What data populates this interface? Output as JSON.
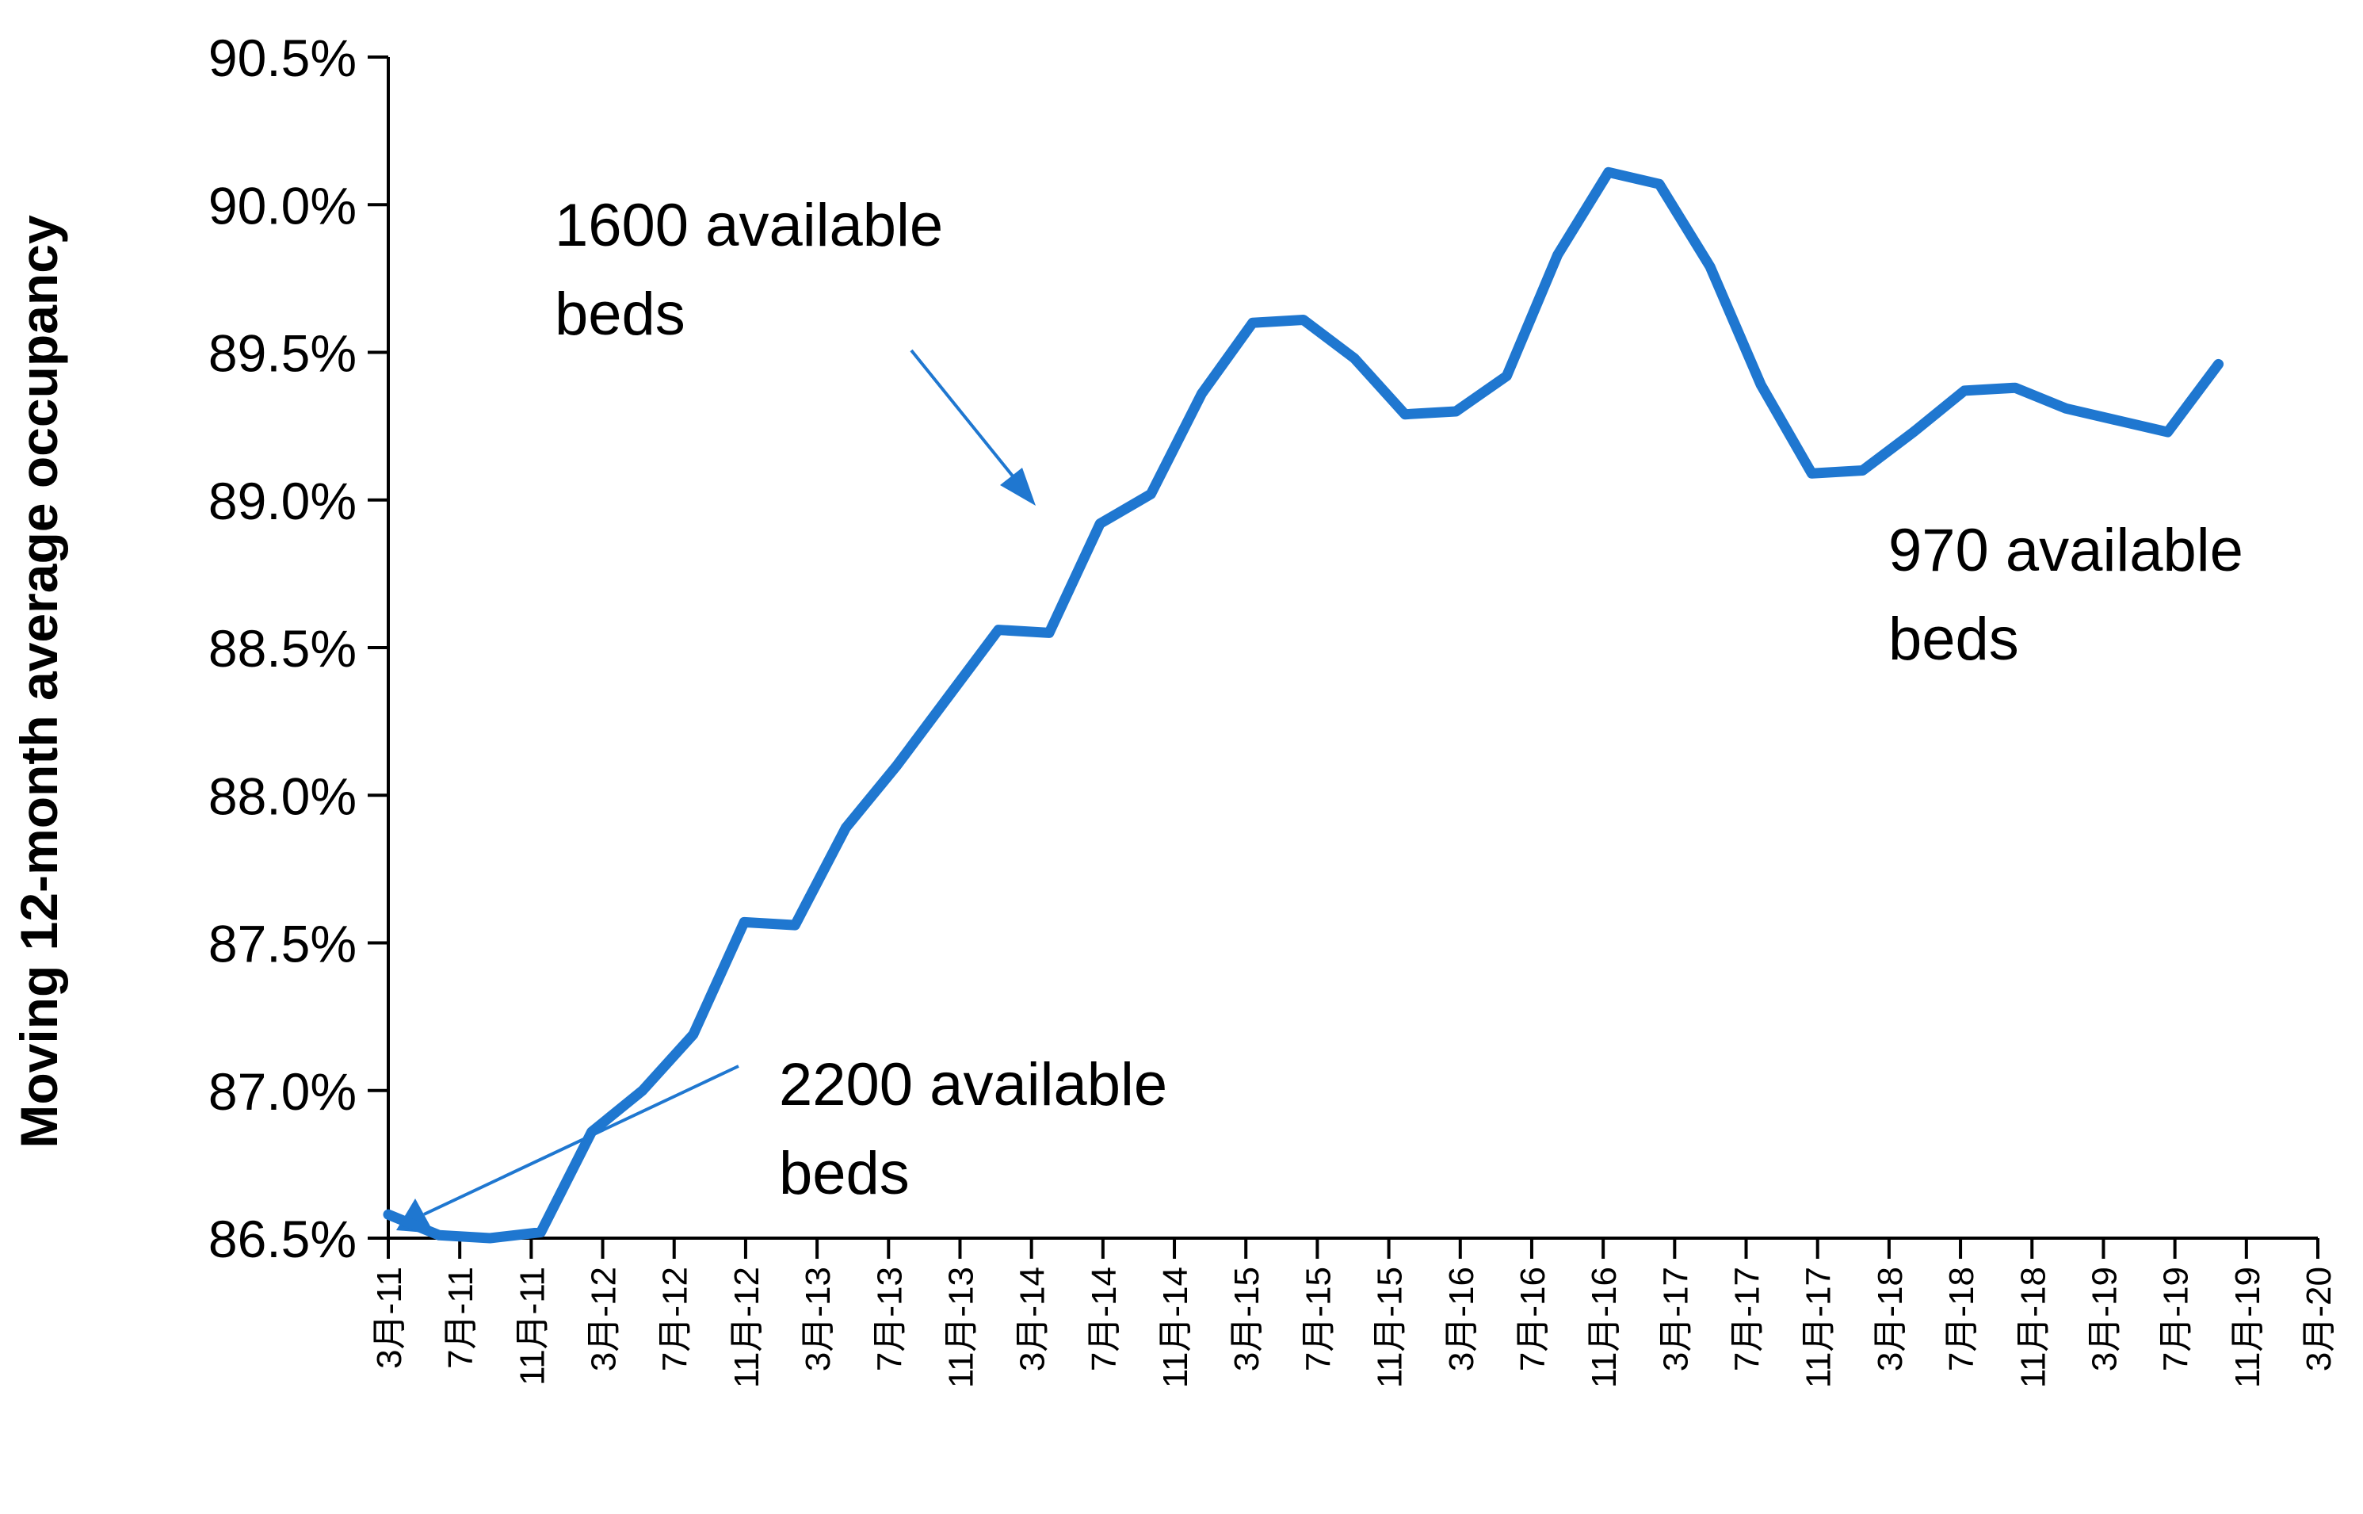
{
  "chart_data": {
    "type": "line",
    "title": "",
    "xlabel": "",
    "ylabel": "Moving 12-month average occupancy",
    "ylim": [
      0.865,
      0.905
    ],
    "yticks": [
      "90.5%",
      "90.0%",
      "89.5%",
      "89.0%",
      "88.5%",
      "88.0%",
      "87.5%",
      "87.0%",
      "86.5%"
    ],
    "xticks": [
      "3月-11",
      "7月-11",
      "11月-11",
      "3月-12",
      "7月-12",
      "11月-12",
      "3月-13",
      "7月-13",
      "11月-13",
      "3月-14",
      "7月-14",
      "11月-14",
      "3月-15",
      "7月-15",
      "11月-15",
      "3月-16",
      "7月-16",
      "11月-16",
      "3月-17",
      "7月-17",
      "11月-17",
      "3月-18",
      "7月-18",
      "11月-18",
      "3月-19",
      "7月-19",
      "11月-19",
      "3月-20"
    ],
    "grid": false,
    "legend": "none",
    "line_color": "#1f77d0",
    "series": [
      {
        "values": [
          0.8658,
          0.8651,
          0.865,
          0.8652,
          0.8686,
          0.87,
          0.8719,
          0.8757,
          0.8756,
          0.8789,
          0.881,
          0.8833,
          0.8856,
          0.8855,
          0.8892,
          0.8902,
          0.8936,
          0.896,
          0.8961,
          0.8948,
          0.8929,
          0.893,
          0.8942,
          0.8983,
          0.9011,
          0.9007,
          0.8979,
          0.8939,
          0.8909,
          0.891,
          0.8923,
          0.8937,
          0.8938,
          0.8931,
          0.8927,
          0.8923,
          0.8946
        ]
      }
    ],
    "annotations": [
      {
        "text_lines": [
          "1600 available",
          "beds"
        ]
      },
      {
        "text_lines": [
          "970 available",
          "beds"
        ]
      },
      {
        "text_lines": [
          "2200 available",
          "beds"
        ]
      }
    ]
  }
}
